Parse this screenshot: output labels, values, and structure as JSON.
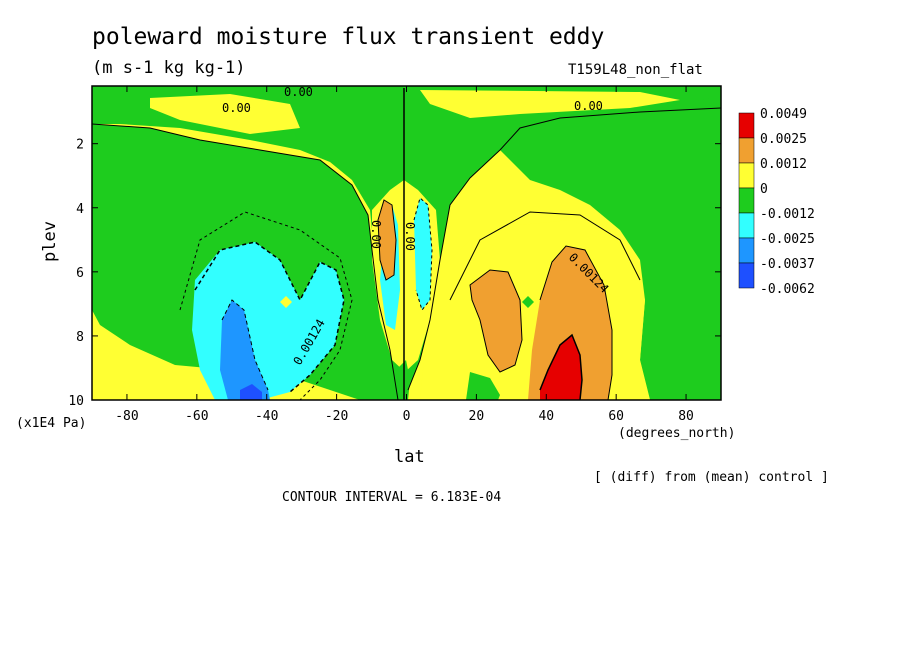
{
  "title": "poleward moisture flux transient eddy",
  "units": "(m s-1 kg kg-1)",
  "model": "T159L48_non_flat",
  "ylabel": "plev",
  "yunit": "(x1E4 Pa)",
  "xlabel": "lat",
  "xunit": "(degrees_north)",
  "note": "[ (diff) from (mean) control ]",
  "contour_interval": "CONTOUR INTERVAL = 6.183E-04",
  "chart_data": {
    "type": "heatmap",
    "title": "poleward moisture flux transient eddy",
    "xlabel": "lat",
    "ylabel": "plev",
    "xlim": [
      -90,
      90
    ],
    "ylim": [
      10,
      0.2
    ],
    "x_ticks": [
      "-80",
      "-60",
      "-40",
      "-20",
      "0",
      "20",
      "40",
      "60",
      "80"
    ],
    "y_ticks": [
      "2",
      "4",
      "6",
      "8",
      "10"
    ],
    "legend": {
      "placement": "right",
      "labels": [
        "0.0049",
        "0.0025",
        "0.0012",
        "0",
        "-0.0012",
        "-0.0025",
        "-0.0037",
        "-0.0062"
      ],
      "colors": [
        "#e60000",
        "#f0a030",
        "#ffff33",
        "#1ecc1e",
        "#32ffff",
        "#1e96ff",
        "#1e50ff"
      ]
    },
    "contour_labels": [
      "0.00",
      "0.00",
      "0.00",
      "0.00",
      "0.00",
      "0.00124",
      "0.00124"
    ],
    "contour_interval": "6.183E-04"
  }
}
